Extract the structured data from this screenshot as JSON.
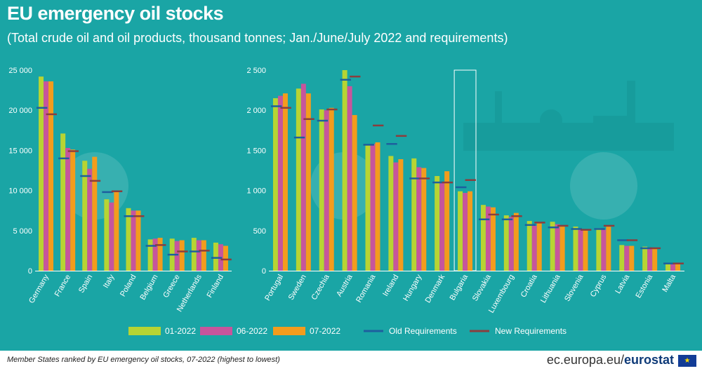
{
  "title": "EU emergency oil stocks",
  "subtitle": "(Total crude oil and oil products, thousand tonnes; Jan./June/July 2022 and requirements)",
  "footnote": "Member States ranked by EU emergency oil stocks, 07-2022 (highest to lowest)",
  "source": {
    "plain": "ec.europa.eu/",
    "bold": "eurostat"
  },
  "colors": {
    "background": "#1aa5a5",
    "s01": "#b7d433",
    "s06": "#c7559c",
    "s07": "#f39c1d",
    "old_req": "#1d5f9e",
    "new_req": "#8a3e3e",
    "text": "#ffffff"
  },
  "legend": [
    {
      "label": "01-2022",
      "kind": "swatch",
      "color": "#b7d433"
    },
    {
      "label": "06-2022",
      "kind": "swatch",
      "color": "#c7559c"
    },
    {
      "label": "07-2022",
      "kind": "swatch",
      "color": "#f39c1d"
    },
    {
      "label": "Old Requirements",
      "kind": "line",
      "color": "#1d5f9e"
    },
    {
      "label": "New Requirements",
      "kind": "line",
      "color": "#8a3e3e"
    }
  ],
  "chart_data": [
    {
      "type": "bar",
      "title": "",
      "xlabel": "",
      "ylabel": "thousand tonnes",
      "ylim": [
        0,
        25000
      ],
      "yticks": [
        "0",
        "5 000",
        "10 000",
        "15 000",
        "20 000",
        "25 000"
      ],
      "categories": [
        "Germany",
        "France",
        "Spain",
        "Italy",
        "Poland",
        "Belgium",
        "Greece",
        "Netherlands",
        "Finland"
      ],
      "series": [
        {
          "name": "01-2022",
          "values": [
            24200,
            17100,
            13700,
            8900,
            7800,
            3900,
            4000,
            4100,
            3500
          ]
        },
        {
          "name": "06-2022",
          "values": [
            23600,
            15300,
            12700,
            8500,
            7500,
            4000,
            3700,
            3800,
            3300
          ]
        },
        {
          "name": "07-2022",
          "values": [
            23600,
            15100,
            14200,
            9800,
            7500,
            4100,
            3800,
            3800,
            3100
          ]
        }
      ],
      "requirements": [
        {
          "name": "Old Requirements",
          "values": [
            20300,
            14000,
            11800,
            9800,
            6800,
            3100,
            2000,
            2400,
            1600
          ]
        },
        {
          "name": "New Requirements",
          "values": [
            19500,
            14900,
            11200,
            9900,
            6800,
            3200,
            2400,
            2500,
            1400
          ]
        }
      ]
    },
    {
      "type": "bar",
      "title": "",
      "xlabel": "",
      "ylabel": "thousand tonnes",
      "ylim": [
        0,
        2500
      ],
      "yticks": [
        "0",
        "500",
        "1 000",
        "1 500",
        "2 000",
        "2 500"
      ],
      "categories": [
        "Portugal",
        "Sweden",
        "Czechia",
        "Austria",
        "Romania",
        "Ireland",
        "Hungary",
        "Denmark",
        "Bulgaria",
        "Slovakia",
        "Luxembourg",
        "Croatia",
        "Lithuania",
        "Slovenia",
        "Cyprus",
        "Latvia",
        "Estonia",
        "Malta"
      ],
      "highlight": "Bulgaria",
      "series": [
        {
          "name": "01-2022",
          "values": [
            2150,
            2270,
            2010,
            2500,
            1560,
            1430,
            1400,
            1180,
            990,
            820,
            690,
            620,
            610,
            550,
            530,
            320,
            300,
            85
          ]
        },
        {
          "name": "06-2022",
          "values": [
            2180,
            2330,
            2000,
            2300,
            1580,
            1350,
            1290,
            1110,
            970,
            800,
            670,
            560,
            580,
            520,
            510,
            310,
            280,
            90
          ]
        },
        {
          "name": "07-2022",
          "values": [
            2210,
            2210,
            2030,
            1940,
            1600,
            1390,
            1280,
            1240,
            990,
            790,
            720,
            600,
            560,
            510,
            550,
            310,
            280,
            90
          ]
        }
      ],
      "requirements": [
        {
          "name": "Old Requirements",
          "values": [
            2050,
            1660,
            1870,
            2380,
            1570,
            1580,
            1150,
            1100,
            1040,
            640,
            640,
            570,
            540,
            520,
            520,
            380,
            280,
            90
          ]
        },
        {
          "name": "New Requirements",
          "values": [
            2030,
            1890,
            2010,
            2420,
            1810,
            1680,
            1150,
            1100,
            1130,
            700,
            680,
            600,
            560,
            510,
            560,
            380,
            280,
            90
          ]
        }
      ]
    }
  ]
}
